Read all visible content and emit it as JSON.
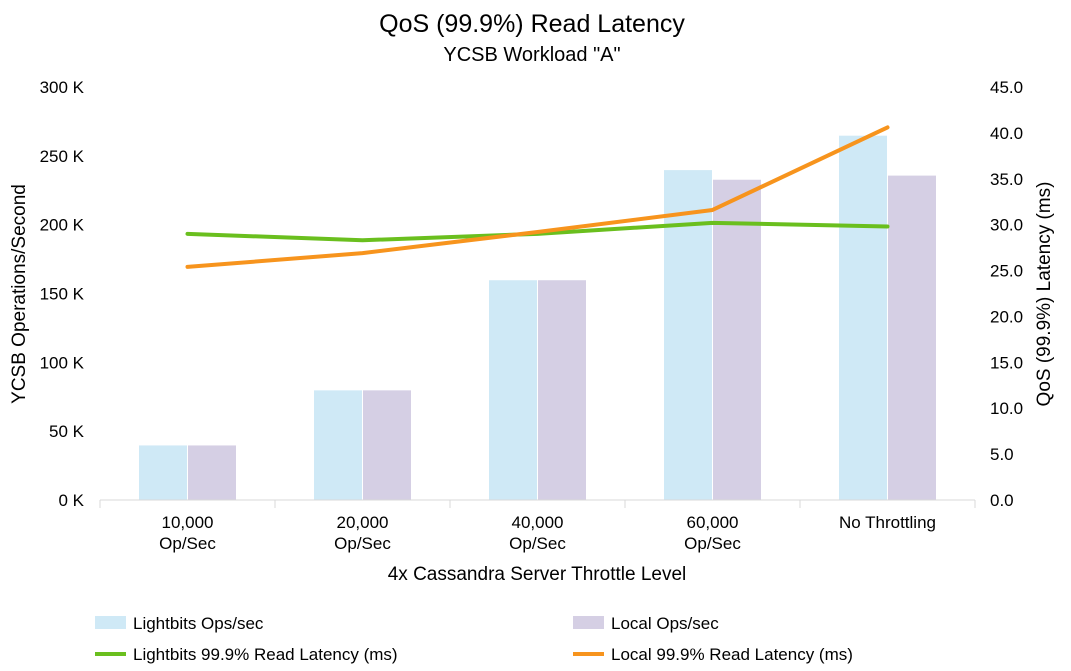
{
  "chart_data": {
    "type": "bar",
    "title": "QoS (99.9%) Read Latency",
    "subtitle": "YCSB Workload \"A\"",
    "xlabel": "4x Cassandra Server Throttle Level",
    "ylabel": "YCSB Operations/Second",
    "y2label": "QoS (99.9%) Latency (ms)",
    "categories": [
      [
        "10,000",
        "Op/Sec"
      ],
      [
        "20,000",
        "Op/Sec"
      ],
      [
        "40,000",
        "Op/Sec"
      ],
      [
        "60,000",
        "Op/Sec"
      ],
      [
        "No Throttling"
      ]
    ],
    "ylim": [
      0,
      300000
    ],
    "y_ticks": [
      0,
      50000,
      100000,
      150000,
      200000,
      250000,
      300000
    ],
    "y_tick_labels": [
      "0 K",
      "50 K",
      "100 K",
      "150 K",
      "200 K",
      "250 K",
      "300 K"
    ],
    "y2lim": [
      0,
      45
    ],
    "y2_ticks": [
      0,
      5,
      10,
      15,
      20,
      25,
      30,
      35,
      40,
      45
    ],
    "y2_tick_labels": [
      "0.0",
      "5.0",
      "10.0",
      "15.0",
      "20.0",
      "25.0",
      "30.0",
      "35.0",
      "40.0",
      "45.0"
    ],
    "grid": false,
    "legend_position": "bottom",
    "series": [
      {
        "name": "Lightbits Ops/sec",
        "kind": "bar",
        "axis": "left",
        "color": "#cfe9f6",
        "values": [
          40000,
          80000,
          160000,
          240000,
          265000
        ]
      },
      {
        "name": "Local Ops/sec",
        "kind": "bar",
        "axis": "left",
        "color": "#d5cfe4",
        "values": [
          40000,
          80000,
          160000,
          233000,
          236000
        ]
      },
      {
        "name": "Lightbits 99.9% Read Latency (ms)",
        "kind": "line",
        "axis": "right",
        "color": "#6abf1e",
        "values": [
          29.0,
          28.3,
          29.0,
          30.2,
          29.8
        ]
      },
      {
        "name": "Local 99.9% Read Latency (ms)",
        "kind": "line",
        "axis": "right",
        "color": "#f7941d",
        "values": [
          25.4,
          26.9,
          29.2,
          31.6,
          40.6
        ]
      }
    ]
  }
}
